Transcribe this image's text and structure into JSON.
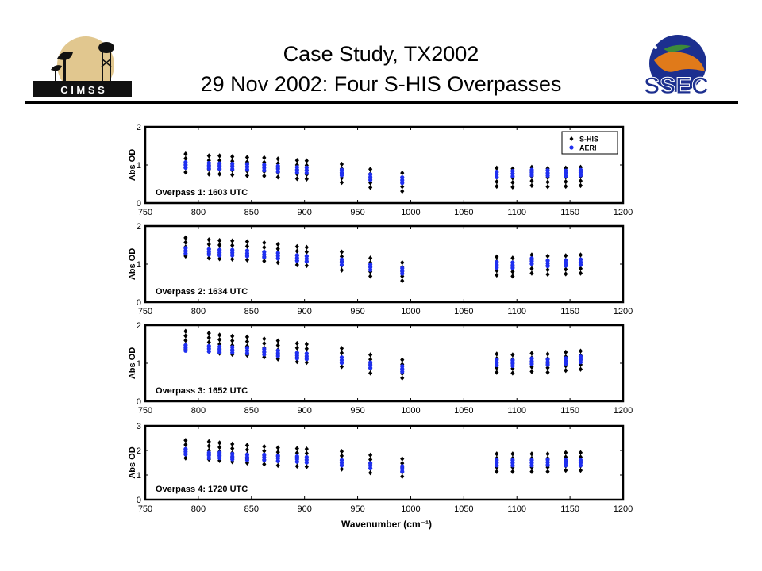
{
  "slide": {
    "title_line1": "Case Study, TX2002",
    "title_line2": "29 Nov 2002:  Four S-HIS Overpasses"
  },
  "logos": {
    "left_text": "C I M S S",
    "right_text": "SSEC"
  },
  "colors": {
    "shis": "#000000",
    "aeri": "#1f2ff0",
    "ssec_blue": "#1c2f8f",
    "ssec_orange": "#e07a1a",
    "cimss_gold": "#d7b46a"
  },
  "chart_data": [
    {
      "type": "scatter",
      "annotation": "Overpass 1:  1603 UTC",
      "ylabel": "Abs OD",
      "xlabel": "",
      "xlim": [
        750,
        1200
      ],
      "ylim": [
        0,
        2
      ],
      "xticks": [
        750,
        800,
        850,
        900,
        950,
        1000,
        1050,
        1100,
        1150,
        1200
      ],
      "yticks": [
        0,
        1,
        2
      ],
      "legend": {
        "placement": "top-right",
        "entries": [
          "S-HIS",
          "AERI"
        ]
      },
      "x": [
        788,
        810,
        820,
        832,
        846,
        862,
        875,
        893,
        902,
        935,
        962,
        992,
        1081,
        1096,
        1114,
        1129,
        1146,
        1160
      ],
      "series": [
        {
          "name": "S-HIS",
          "values": [
            1.05,
            1.0,
            1.0,
            0.98,
            0.96,
            0.95,
            0.92,
            0.88,
            0.87,
            0.78,
            0.65,
            0.55,
            0.68,
            0.66,
            0.7,
            0.67,
            0.68,
            0.7
          ]
        },
        {
          "name": "AERI",
          "values": [
            1.0,
            0.98,
            0.97,
            0.96,
            0.95,
            0.93,
            0.9,
            0.87,
            0.86,
            0.8,
            0.68,
            0.6,
            0.75,
            0.77,
            0.8,
            0.79,
            0.78,
            0.8
          ]
        }
      ]
    },
    {
      "type": "scatter",
      "annotation": "Overpass 2:  1634 UTC",
      "ylabel": "Abs OD",
      "xlabel": "",
      "xlim": [
        750,
        1200
      ],
      "ylim": [
        0,
        2
      ],
      "xticks": [
        750,
        800,
        850,
        900,
        950,
        1000,
        1050,
        1100,
        1150,
        1200
      ],
      "yticks": [
        0,
        1,
        2
      ],
      "x": [
        788,
        810,
        820,
        832,
        846,
        862,
        875,
        893,
        902,
        935,
        962,
        992,
        1081,
        1096,
        1114,
        1129,
        1146,
        1160
      ],
      "series": [
        {
          "name": "S-HIS",
          "values": [
            1.45,
            1.4,
            1.38,
            1.37,
            1.35,
            1.32,
            1.28,
            1.22,
            1.2,
            1.08,
            0.92,
            0.8,
            0.95,
            0.92,
            1.0,
            0.97,
            0.98,
            1.0
          ]
        },
        {
          "name": "AERI",
          "values": [
            1.35,
            1.32,
            1.3,
            1.3,
            1.28,
            1.25,
            1.22,
            1.16,
            1.14,
            1.05,
            0.92,
            0.82,
            0.98,
            0.97,
            1.08,
            1.02,
            1.03,
            1.05
          ]
        }
      ]
    },
    {
      "type": "scatter",
      "annotation": "Overpass 3:  1652 UTC",
      "ylabel": "Abs OD",
      "xlabel": "",
      "xlim": [
        750,
        1200
      ],
      "ylim": [
        0,
        2
      ],
      "xticks": [
        750,
        800,
        850,
        900,
        950,
        1000,
        1050,
        1100,
        1150,
        1200
      ],
      "yticks": [
        0,
        1,
        2
      ],
      "x": [
        788,
        810,
        820,
        832,
        846,
        862,
        875,
        893,
        902,
        935,
        962,
        992,
        1081,
        1096,
        1114,
        1129,
        1146,
        1160
      ],
      "series": [
        {
          "name": "S-HIS",
          "values": [
            1.6,
            1.55,
            1.5,
            1.47,
            1.45,
            1.4,
            1.35,
            1.28,
            1.26,
            1.15,
            0.98,
            0.85,
            1.0,
            0.98,
            1.02,
            1.0,
            1.05,
            1.08
          ]
        },
        {
          "name": "AERI",
          "values": [
            1.4,
            1.38,
            1.36,
            1.35,
            1.33,
            1.3,
            1.26,
            1.2,
            1.18,
            1.08,
            0.95,
            0.85,
            1.02,
            1.0,
            1.05,
            1.03,
            1.06,
            1.1
          ]
        }
      ]
    },
    {
      "type": "scatter",
      "annotation": "Overpass 4:  1720 UTC",
      "ylabel": "Abs OD",
      "xlabel": "Wavenumber (cm⁻¹)",
      "xlim": [
        750,
        1200
      ],
      "ylim": [
        0,
        3
      ],
      "xticks": [
        750,
        800,
        850,
        900,
        950,
        1000,
        1050,
        1100,
        1150,
        1200
      ],
      "yticks": [
        0,
        1,
        2,
        3
      ],
      "x": [
        788,
        810,
        820,
        832,
        846,
        862,
        875,
        893,
        902,
        935,
        962,
        992,
        1081,
        1096,
        1114,
        1129,
        1146,
        1160
      ],
      "series": [
        {
          "name": "S-HIS",
          "values": [
            2.05,
            2.0,
            1.95,
            1.9,
            1.85,
            1.8,
            1.75,
            1.72,
            1.7,
            1.6,
            1.45,
            1.3,
            1.5,
            1.5,
            1.5,
            1.5,
            1.55,
            1.55
          ]
        },
        {
          "name": "AERI",
          "values": [
            1.95,
            1.8,
            1.8,
            1.75,
            1.72,
            1.72,
            1.68,
            1.65,
            1.62,
            1.5,
            1.38,
            1.25,
            1.5,
            1.5,
            1.5,
            1.52,
            1.5,
            1.5
          ]
        }
      ]
    }
  ]
}
